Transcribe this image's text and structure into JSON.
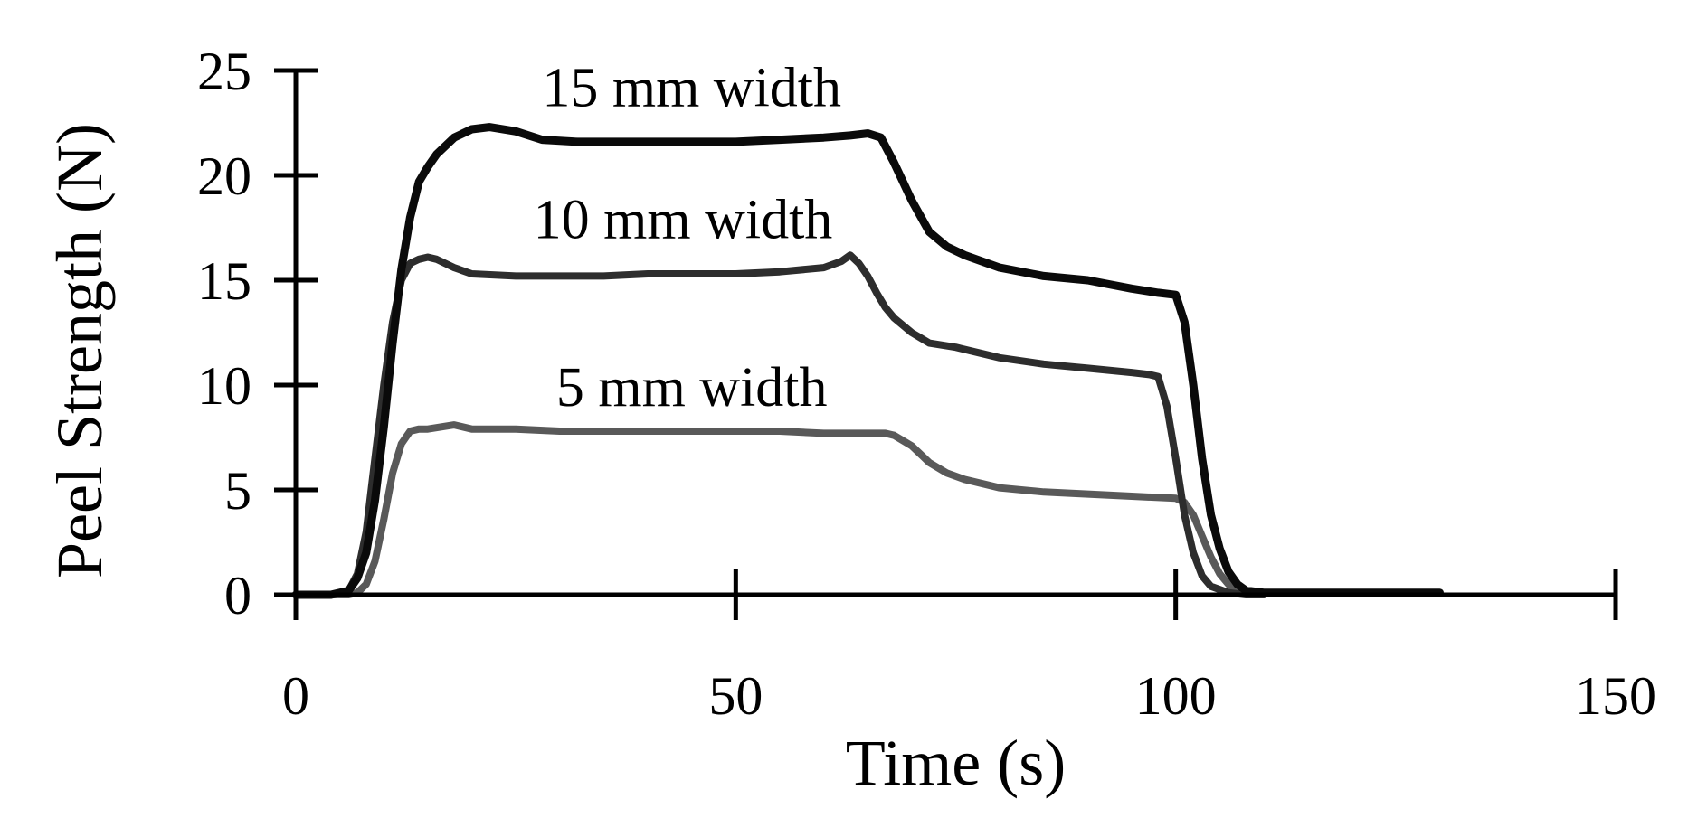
{
  "chart_data": {
    "type": "line",
    "title": "",
    "xlabel": "Time (s)",
    "ylabel": "Peel Strength (N)",
    "xlim": [
      0,
      150
    ],
    "ylim": [
      0,
      25
    ],
    "x_ticks": [
      "0",
      "50",
      "100",
      "150"
    ],
    "y_ticks": [
      "0",
      "5",
      "10",
      "15",
      "20",
      "25"
    ],
    "grid": false,
    "legend": "inline labels",
    "series": [
      {
        "name": "15 mm width",
        "color": "#0a0a0a",
        "x": [
          0,
          4,
          6,
          7,
          8,
          9,
          10,
          11,
          12,
          13,
          14,
          15,
          16,
          18,
          20,
          22,
          25,
          28,
          32,
          36,
          40,
          45,
          50,
          55,
          60,
          63,
          65,
          66.5,
          68,
          70,
          72,
          74,
          76,
          80,
          85,
          90,
          95,
          98,
          100,
          101,
          102,
          103,
          104,
          105,
          106,
          107,
          108,
          110,
          115,
          120,
          125,
          130
        ],
        "y": [
          0,
          0,
          0.2,
          0.8,
          2.0,
          4.5,
          8.0,
          12.0,
          15.5,
          18.0,
          19.7,
          20.4,
          21.0,
          21.8,
          22.2,
          22.3,
          22.1,
          21.7,
          21.6,
          21.6,
          21.6,
          21.6,
          21.6,
          21.7,
          21.8,
          21.9,
          22.0,
          21.8,
          20.6,
          18.8,
          17.3,
          16.6,
          16.2,
          15.6,
          15.2,
          15.0,
          14.6,
          14.4,
          14.3,
          13.0,
          10.0,
          6.5,
          3.8,
          2.2,
          1.1,
          0.5,
          0.2,
          0.1,
          0.1,
          0.1,
          0.1,
          0.1
        ]
      },
      {
        "name": "10 mm width",
        "color": "#2d2d2d",
        "x": [
          0,
          4,
          6,
          7,
          8,
          9,
          10,
          11,
          12,
          13,
          14,
          15,
          16,
          18,
          20,
          25,
          30,
          35,
          40,
          45,
          50,
          55,
          60,
          62,
          63,
          64,
          65,
          66,
          67,
          68,
          70,
          72,
          75,
          80,
          85,
          90,
          95,
          97,
          98,
          99,
          100,
          101,
          102,
          103,
          104,
          106,
          108,
          110
        ],
        "y": [
          0,
          0,
          0.2,
          1.0,
          3.0,
          6.5,
          10.0,
          13.0,
          15.0,
          15.8,
          16.0,
          16.1,
          16.0,
          15.6,
          15.3,
          15.2,
          15.2,
          15.2,
          15.3,
          15.3,
          15.3,
          15.4,
          15.6,
          15.9,
          16.2,
          15.8,
          15.2,
          14.4,
          13.7,
          13.2,
          12.5,
          12.0,
          11.8,
          11.3,
          11.0,
          10.8,
          10.6,
          10.5,
          10.4,
          9.0,
          6.5,
          3.8,
          2.0,
          0.9,
          0.4,
          0.1,
          0.0,
          0.0
        ]
      },
      {
        "name": "5 mm width",
        "color": "#595959",
        "x": [
          0,
          6,
          7,
          8,
          9,
          10,
          11,
          12,
          13,
          14,
          15,
          18,
          20,
          25,
          30,
          35,
          40,
          45,
          50,
          55,
          60,
          65,
          67,
          68,
          70,
          72,
          74,
          76,
          80,
          85,
          90,
          95,
          100,
          101,
          102,
          103,
          104,
          105,
          106,
          107,
          108,
          110
        ],
        "y": [
          0,
          0,
          0.1,
          0.5,
          1.6,
          3.6,
          5.8,
          7.2,
          7.8,
          7.9,
          7.9,
          8.1,
          7.9,
          7.9,
          7.8,
          7.8,
          7.8,
          7.8,
          7.8,
          7.8,
          7.7,
          7.7,
          7.7,
          7.6,
          7.1,
          6.3,
          5.8,
          5.5,
          5.1,
          4.9,
          4.8,
          4.7,
          4.6,
          4.4,
          3.8,
          2.8,
          1.8,
          1.0,
          0.5,
          0.2,
          0.1,
          0.0
        ]
      }
    ],
    "annotations": [
      {
        "series": "15 mm width",
        "text": "15 mm width",
        "anchor_x": 45,
        "anchor_y": 23.3
      },
      {
        "series": "10 mm width",
        "text": "10 mm width",
        "anchor_x": 44,
        "anchor_y": 17.0
      },
      {
        "series": "5 mm width",
        "text": "5 mm width",
        "anchor_x": 45,
        "anchor_y": 9.0
      }
    ]
  }
}
